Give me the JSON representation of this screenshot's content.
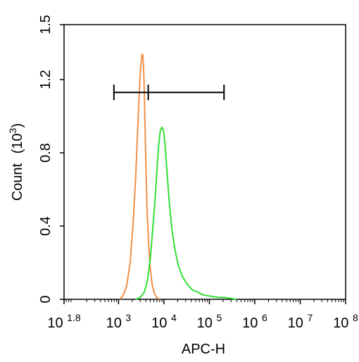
{
  "chart_data": {
    "type": "line",
    "title": "",
    "xlabel": "APC-H",
    "ylabel": "Count",
    "ylabel_unit_base": "10",
    "ylabel_unit_exp": "3",
    "x_scale": "log",
    "xlim": [
      63.1,
      100000000
    ],
    "ylim": [
      0,
      1.5
    ],
    "grid": false,
    "x_ticks": [
      {
        "base": "10",
        "exp": "1.8",
        "value": 63.1
      },
      {
        "base": "10",
        "exp": "3",
        "value": 1000
      },
      {
        "base": "10",
        "exp": "4",
        "value": 10000
      },
      {
        "base": "10",
        "exp": "5",
        "value": 100000
      },
      {
        "base": "10",
        "exp": "6",
        "value": 1000000
      },
      {
        "base": "10",
        "exp": "7",
        "value": 10000000
      },
      {
        "base": "10",
        "exp": "8",
        "value": 100000000
      }
    ],
    "y_ticks": [
      "0",
      "0.4",
      "0.8",
      "1.2",
      "1.5"
    ],
    "y_tick_values": [
      0,
      0.4,
      0.8,
      1.2,
      1.5
    ],
    "series": [
      {
        "color": "#f0904a",
        "x": [
          1050,
          1250,
          1500,
          1800,
          2100,
          2400,
          2700,
          2950,
          3150,
          3300,
          3420,
          3550,
          3700,
          3850,
          4000,
          4250,
          4600,
          5000,
          5500,
          6200,
          7000,
          8000
        ],
        "y": [
          0,
          0.02,
          0.07,
          0.2,
          0.42,
          0.68,
          0.98,
          1.2,
          1.3,
          1.34,
          1.33,
          1.27,
          1.12,
          0.92,
          0.72,
          0.48,
          0.3,
          0.17,
          0.08,
          0.03,
          0.01,
          0
        ]
      },
      {
        "color": "#33dd33",
        "x": [
          2400,
          3000,
          3700,
          4300,
          5000,
          5600,
          6300,
          7000,
          7700,
          8300,
          9000,
          9800,
          10600,
          11800,
          13200,
          15000,
          17500,
          21000,
          26000,
          33000,
          43000,
          55000,
          70000,
          90000,
          120000,
          160000,
          220000,
          300000,
          400000
        ],
        "y": [
          0,
          0.01,
          0.04,
          0.1,
          0.22,
          0.37,
          0.53,
          0.7,
          0.85,
          0.92,
          0.94,
          0.92,
          0.84,
          0.68,
          0.52,
          0.38,
          0.27,
          0.18,
          0.12,
          0.08,
          0.05,
          0.04,
          0.025,
          0.02,
          0.015,
          0.01,
          0.01,
          0.005,
          0
        ]
      }
    ],
    "gate": {
      "x_start": 790,
      "x_end": 210000,
      "x_mid": 4500,
      "y": 1.13
    }
  }
}
